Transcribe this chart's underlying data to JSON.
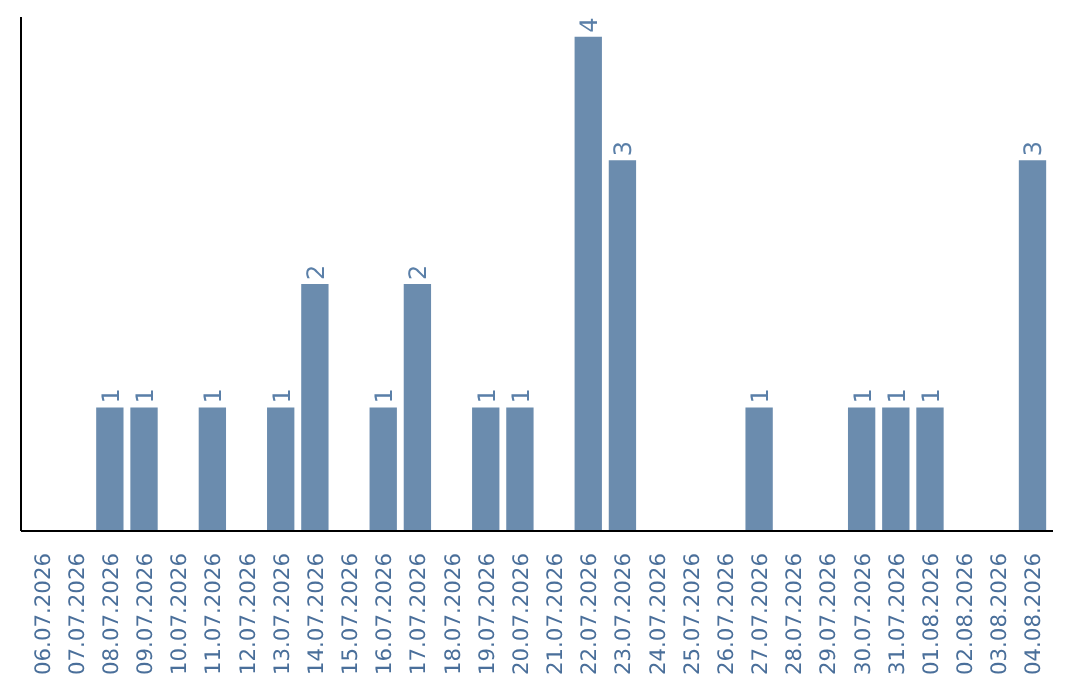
{
  "chart_data": {
    "type": "bar",
    "categories": [
      "06.07.2026",
      "07.07.2026",
      "08.07.2026",
      "09.07.2026",
      "10.07.2026",
      "11.07.2026",
      "12.07.2026",
      "13.07.2026",
      "14.07.2026",
      "15.07.2026",
      "16.07.2026",
      "17.07.2026",
      "18.07.2026",
      "19.07.2026",
      "20.07.2026",
      "21.07.2026",
      "22.07.2026",
      "23.07.2026",
      "24.07.2026",
      "25.07.2026",
      "26.07.2026",
      "27.07.2026",
      "28.07.2026",
      "29.07.2026",
      "30.07.2026",
      "31.07.2026",
      "01.08.2026",
      "02.08.2026",
      "03.08.2026",
      "04.08.2026"
    ],
    "values": [
      0,
      0,
      1,
      1,
      0,
      1,
      0,
      1,
      2,
      0,
      1,
      2,
      0,
      1,
      1,
      0,
      4,
      3,
      0,
      0,
      0,
      1,
      0,
      0,
      1,
      1,
      1,
      0,
      0,
      3
    ],
    "value_labels": [
      null,
      null,
      "1",
      "1",
      null,
      "1",
      null,
      "1",
      "2",
      null,
      "1",
      "2",
      null,
      "1",
      "1",
      null,
      "4",
      "3",
      null,
      null,
      null,
      "1",
      null,
      null,
      "1",
      "1",
      "1",
      null,
      null,
      "3"
    ],
    "color": "#6b8cae",
    "ylim": [
      0,
      4
    ],
    "tick_labels": "x",
    "grid": false
  }
}
